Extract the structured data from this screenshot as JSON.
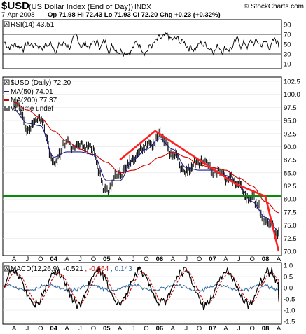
{
  "header": {
    "symbol": "$USD",
    "description": "(US Dollar Index (End of Day))",
    "exchange": "INDX",
    "date": "7-Apr-2008",
    "quote": "Op 71.98  Hi 72.43  Lo 71.93  Cl 72.20  Chg +0.23 (+0.32%)",
    "copyright": "© StockCharts.com"
  },
  "rsi_panel": {
    "label": "RSI(14) 43.51",
    "ticks": [
      90,
      70,
      50,
      30,
      10
    ]
  },
  "price_panel": {
    "legend_title": "$USD (Daily) 72.20",
    "legend_ma50": "MA(50) 74.01",
    "legend_ma200": "MA(200) 77.37",
    "legend_volume": "Volume undef",
    "ticks": [
      "102.5",
      "100.0",
      "97.5",
      "95.0",
      "92.5",
      "90.0",
      "87.5",
      "85.0",
      "82.5",
      "80.0",
      "77.5",
      "75.0",
      "72.5",
      "70.0"
    ],
    "x_labels": [
      "A",
      "J",
      "O",
      "04",
      "A",
      "J",
      "O",
      "05",
      "A",
      "J",
      "O",
      "06",
      "A",
      "J",
      "O",
      "07",
      "A",
      "J",
      "O",
      "08",
      "A"
    ]
  },
  "macd_panel": {
    "label_prefix": "MACD(12,26,9)",
    "macd_value": "-0.521",
    "signal_value": ", -0.664",
    "hist_value": ", 0.143",
    "ticks": [
      "1.0",
      "0.5",
      "0.0",
      "-0.5",
      "-1.0",
      "-1.5"
    ],
    "x_labels": [
      "A",
      "J",
      "O",
      "04",
      "A",
      "J",
      "O",
      "05",
      "A",
      "J",
      "O",
      "06",
      "A",
      "J",
      "O",
      "07",
      "A",
      "J",
      "O",
      "08",
      "A"
    ]
  },
  "colors": {
    "price": "#000000",
    "ma50": "#1f1f8f",
    "ma200": "#cc0000",
    "trendline": "#ff2020",
    "support": "#0a8a0a",
    "macd": "#000000",
    "signal": "#cc0000",
    "hist": "#3a6fa0",
    "rsi_bands": "#000000"
  },
  "chart_data": [
    {
      "type": "line",
      "panel": "RSI(14)",
      "ylim": [
        0,
        100
      ],
      "levels": [
        70,
        30
      ],
      "last": 43.51
    },
    {
      "type": "line",
      "panel": "$USD (Daily)",
      "ylim": [
        70.0,
        102.5
      ],
      "x": [
        "2003-04",
        "2003-07",
        "2003-10",
        "2004-01",
        "2004-04",
        "2004-07",
        "2004-10",
        "2005-01",
        "2005-04",
        "2005-07",
        "2005-10",
        "2006-01",
        "2006-04",
        "2006-07",
        "2006-10",
        "2007-01",
        "2007-04",
        "2007-07",
        "2007-10",
        "2008-01",
        "2008-04"
      ],
      "series": [
        {
          "name": "$USD (Daily)",
          "values": [
            97.5,
            93.5,
            95.0,
            86.5,
            90.0,
            88.5,
            89.5,
            81.5,
            84.5,
            88.5,
            90.0,
            92.5,
            89.0,
            85.0,
            86.0,
            86.0,
            84.5,
            82.0,
            80.0,
            76.0,
            72.2
          ]
        },
        {
          "name": "MA(50)",
          "values": [
            97.0,
            94.5,
            94.0,
            88.0,
            89.0,
            89.0,
            88.5,
            83.5,
            83.5,
            87.5,
            89.5,
            91.5,
            89.5,
            86.0,
            85.5,
            85.5,
            84.5,
            82.5,
            79.5,
            76.5,
            74.01
          ]
        },
        {
          "name": "MA(200)",
          "values": [
            98.5,
            97.0,
            95.5,
            93.0,
            91.0,
            89.5,
            88.5,
            87.0,
            85.0,
            85.5,
            86.5,
            88.0,
            89.0,
            88.0,
            86.5,
            86.0,
            85.5,
            84.0,
            82.5,
            79.5,
            77.37
          ]
        }
      ],
      "annotations": {
        "support_line": 80.5,
        "trendline_points": [
          {
            "x": "2005-04",
            "y": 87.5
          },
          {
            "x": "2005-12",
            "y": 93.0
          },
          {
            "x": "2007-06",
            "y": 83.0
          },
          {
            "x": "2008-01",
            "y": 80.5
          },
          {
            "x": "2008-04",
            "y": 70.0
          }
        ]
      }
    },
    {
      "type": "line",
      "panel": "MACD(12,26,9)",
      "ylim": [
        -1.5,
        1.0
      ],
      "last": {
        "macd": -0.521,
        "signal": -0.664,
        "histogram": 0.143
      }
    }
  ]
}
